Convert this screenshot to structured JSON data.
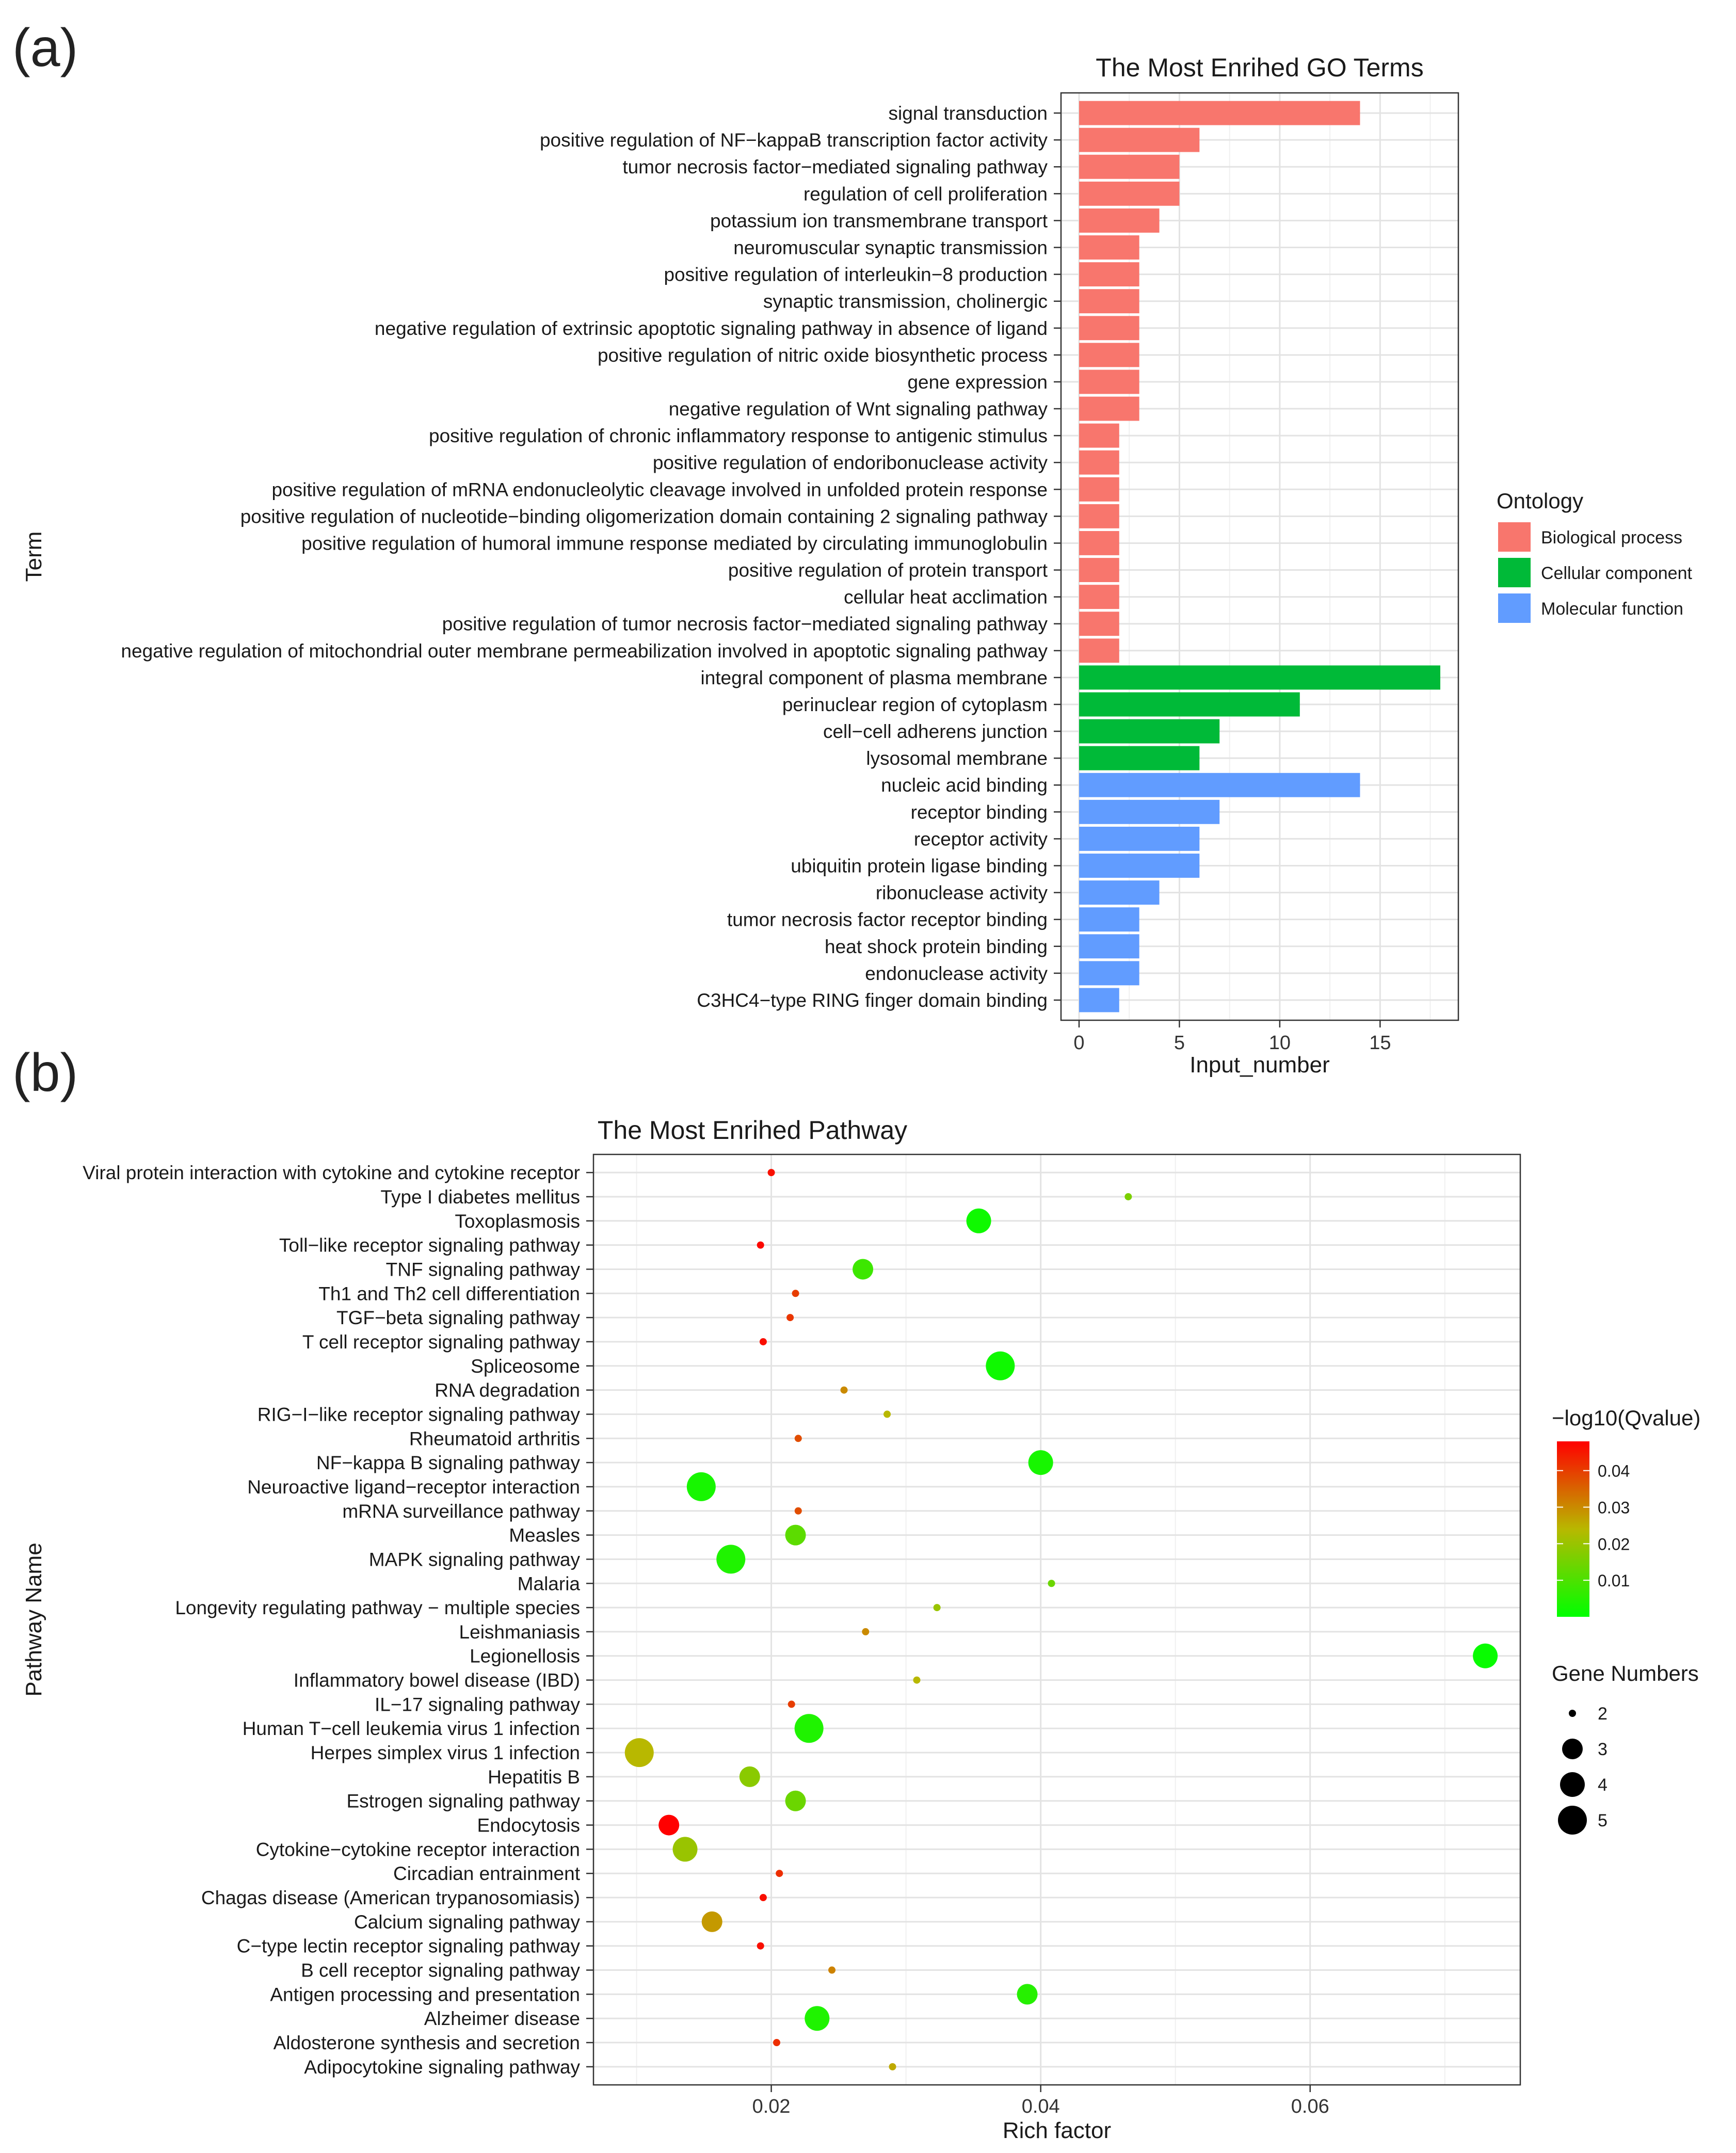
{
  "panel_a_label": "(a)",
  "panel_b_label": "(b)",
  "chart_data": [
    {
      "type": "bar",
      "orientation": "horizontal",
      "title": "The Most Enrihed GO Terms",
      "xlabel": "Input_number",
      "ylabel": "Term",
      "xlim": [
        -0.9,
        18.9
      ],
      "xticks": [
        0,
        5,
        10,
        15
      ],
      "grid": true,
      "legend": {
        "title": "Ontology",
        "placement": "right",
        "entries": [
          {
            "name": "Biological process",
            "color": "#F8766D"
          },
          {
            "name": "Cellular component",
            "color": "#00BA38"
          },
          {
            "name": "Molecular function",
            "color": "#619CFF"
          }
        ]
      },
      "bars": [
        {
          "term": "signal transduction",
          "value": 14,
          "ontology": "Biological process"
        },
        {
          "term": "positive regulation of NF−kappaB transcription factor activity",
          "value": 6,
          "ontology": "Biological process"
        },
        {
          "term": "tumor necrosis factor−mediated signaling pathway",
          "value": 5,
          "ontology": "Biological process"
        },
        {
          "term": "regulation of cell proliferation",
          "value": 5,
          "ontology": "Biological process"
        },
        {
          "term": "potassium ion transmembrane transport",
          "value": 4,
          "ontology": "Biological process"
        },
        {
          "term": "neuromuscular synaptic transmission",
          "value": 3,
          "ontology": "Biological process"
        },
        {
          "term": "positive regulation of interleukin−8 production",
          "value": 3,
          "ontology": "Biological process"
        },
        {
          "term": "synaptic transmission, cholinergic",
          "value": 3,
          "ontology": "Biological process"
        },
        {
          "term": "negative regulation of extrinsic apoptotic signaling pathway in absence of ligand",
          "value": 3,
          "ontology": "Biological process"
        },
        {
          "term": "positive regulation of nitric oxide biosynthetic process",
          "value": 3,
          "ontology": "Biological process"
        },
        {
          "term": "gene expression",
          "value": 3,
          "ontology": "Biological process"
        },
        {
          "term": "negative regulation of Wnt signaling pathway",
          "value": 3,
          "ontology": "Biological process"
        },
        {
          "term": "positive regulation of chronic inflammatory response to antigenic stimulus",
          "value": 2,
          "ontology": "Biological process"
        },
        {
          "term": "positive regulation of endoribonuclease activity",
          "value": 2,
          "ontology": "Biological process"
        },
        {
          "term": "positive regulation of mRNA endonucleolytic cleavage involved in unfolded protein response",
          "value": 2,
          "ontology": "Biological process"
        },
        {
          "term": "positive regulation of nucleotide−binding oligomerization domain containing 2 signaling pathway",
          "value": 2,
          "ontology": "Biological process"
        },
        {
          "term": "positive regulation of humoral immune response mediated by circulating immunoglobulin",
          "value": 2,
          "ontology": "Biological process"
        },
        {
          "term": "positive regulation of protein transport",
          "value": 2,
          "ontology": "Biological process"
        },
        {
          "term": "cellular heat acclimation",
          "value": 2,
          "ontology": "Biological process"
        },
        {
          "term": "positive regulation of tumor necrosis factor−mediated signaling pathway",
          "value": 2,
          "ontology": "Biological process"
        },
        {
          "term": "negative regulation of mitochondrial outer membrane permeabilization involved in apoptotic signaling pathway",
          "value": 2,
          "ontology": "Biological process"
        },
        {
          "term": "integral component of plasma membrane",
          "value": 18,
          "ontology": "Cellular component"
        },
        {
          "term": "perinuclear region of cytoplasm",
          "value": 11,
          "ontology": "Cellular component"
        },
        {
          "term": "cell−cell adherens junction",
          "value": 7,
          "ontology": "Cellular component"
        },
        {
          "term": "lysosomal membrane",
          "value": 6,
          "ontology": "Cellular component"
        },
        {
          "term": "nucleic acid binding",
          "value": 14,
          "ontology": "Molecular function"
        },
        {
          "term": "receptor binding",
          "value": 7,
          "ontology": "Molecular function"
        },
        {
          "term": "receptor activity",
          "value": 6,
          "ontology": "Molecular function"
        },
        {
          "term": "ubiquitin protein ligase binding",
          "value": 6,
          "ontology": "Molecular function"
        },
        {
          "term": "ribonuclease activity",
          "value": 4,
          "ontology": "Molecular function"
        },
        {
          "term": "tumor necrosis factor receptor binding",
          "value": 3,
          "ontology": "Molecular function"
        },
        {
          "term": "heat shock protein binding",
          "value": 3,
          "ontology": "Molecular function"
        },
        {
          "term": "endonuclease activity",
          "value": 3,
          "ontology": "Molecular function"
        },
        {
          "term": "C3HC4−type RING finger domain binding",
          "value": 2,
          "ontology": "Molecular function"
        }
      ]
    },
    {
      "type": "scatter",
      "subtype": "bubble",
      "title": "The Most Enrihed Pathway",
      "xlabel": "Rich factor",
      "ylabel": "Pathway Name",
      "xlim": [
        0.0068,
        0.0756
      ],
      "xticks": [
        0.02,
        0.04,
        0.06
      ],
      "xtick_labels": [
        "0.02",
        "0.04",
        "0.06"
      ],
      "grid": true,
      "color_legend": {
        "title": "−log10(Qvalue)",
        "range": [
          0.0,
          0.048
        ],
        "ticks": [
          0.01,
          0.02,
          0.03,
          0.04
        ],
        "tick_labels": [
          "0.01",
          "0.02",
          "0.03",
          "0.04"
        ],
        "color_low": "#00FF00",
        "color_mid": "#B8B800",
        "color_high": "#FF0000"
      },
      "size_legend": {
        "title": "Gene Numbers",
        "entries": [
          2,
          3,
          4,
          5
        ],
        "entry_labels": [
          "2",
          "3",
          "4",
          "5"
        ]
      },
      "points": [
        {
          "pathway": "Viral protein interaction with cytokine and cytokine receptor",
          "rich_factor": 0.02,
          "genes": 2,
          "qvalue": 0.046
        },
        {
          "pathway": "Type I diabetes mellitus",
          "rich_factor": 0.0465,
          "genes": 2,
          "qvalue": 0.016
        },
        {
          "pathway": "Toxoplasmosis",
          "rich_factor": 0.0354,
          "genes": 4,
          "qvalue": 0.002
        },
        {
          "pathway": "Toll−like receptor signaling pathway",
          "rich_factor": 0.0192,
          "genes": 2,
          "qvalue": 0.047
        },
        {
          "pathway": "TNF signaling pathway",
          "rich_factor": 0.0268,
          "genes": 3,
          "qvalue": 0.008
        },
        {
          "pathway": "Th1 and Th2 cell differentiation",
          "rich_factor": 0.0218,
          "genes": 2,
          "qvalue": 0.04
        },
        {
          "pathway": "TGF−beta signaling pathway",
          "rich_factor": 0.0214,
          "genes": 2,
          "qvalue": 0.041
        },
        {
          "pathway": "T cell receptor signaling pathway",
          "rich_factor": 0.0194,
          "genes": 2,
          "qvalue": 0.046
        },
        {
          "pathway": "Spliceosome",
          "rich_factor": 0.037,
          "genes": 5,
          "qvalue": 0.002
        },
        {
          "pathway": "RNA degradation",
          "rich_factor": 0.0254,
          "genes": 2,
          "qvalue": 0.03
        },
        {
          "pathway": "RIG−I−like receptor signaling pathway",
          "rich_factor": 0.0286,
          "genes": 2,
          "qvalue": 0.024
        },
        {
          "pathway": "Rheumatoid arthritis",
          "rich_factor": 0.022,
          "genes": 2,
          "qvalue": 0.038
        },
        {
          "pathway": "NF−kappa B signaling pathway",
          "rich_factor": 0.04,
          "genes": 4,
          "qvalue": 0.003
        },
        {
          "pathway": "Neuroactive ligand−receptor interaction",
          "rich_factor": 0.0148,
          "genes": 5,
          "qvalue": 0.003
        },
        {
          "pathway": "mRNA surveillance pathway",
          "rich_factor": 0.022,
          "genes": 2,
          "qvalue": 0.038
        },
        {
          "pathway": "Measles",
          "rich_factor": 0.0218,
          "genes": 3,
          "qvalue": 0.012
        },
        {
          "pathway": "MAPK signaling pathway",
          "rich_factor": 0.017,
          "genes": 5,
          "qvalue": 0.004
        },
        {
          "pathway": "Malaria",
          "rich_factor": 0.0408,
          "genes": 2,
          "qvalue": 0.014
        },
        {
          "pathway": "Longevity regulating pathway − multiple species",
          "rich_factor": 0.0323,
          "genes": 2,
          "qvalue": 0.02
        },
        {
          "pathway": "Leishmaniasis",
          "rich_factor": 0.027,
          "genes": 2,
          "qvalue": 0.03
        },
        {
          "pathway": "Legionellosis",
          "rich_factor": 0.073,
          "genes": 4,
          "qvalue": 0.001
        },
        {
          "pathway": "Inflammatory bowel disease (IBD)",
          "rich_factor": 0.0308,
          "genes": 2,
          "qvalue": 0.024
        },
        {
          "pathway": "IL−17 signaling pathway",
          "rich_factor": 0.0215,
          "genes": 2,
          "qvalue": 0.04
        },
        {
          "pathway": "Human T−cell leukemia virus 1 infection",
          "rich_factor": 0.0228,
          "genes": 5,
          "qvalue": 0.004
        },
        {
          "pathway": "Herpes simplex virus 1 infection",
          "rich_factor": 0.0102,
          "genes": 5,
          "qvalue": 0.024
        },
        {
          "pathway": "Hepatitis B",
          "rich_factor": 0.0184,
          "genes": 3,
          "qvalue": 0.018
        },
        {
          "pathway": "Estrogen signaling pathway",
          "rich_factor": 0.0218,
          "genes": 3,
          "qvalue": 0.014
        },
        {
          "pathway": "Endocytosis",
          "rich_factor": 0.0124,
          "genes": 3,
          "qvalue": 0.048
        },
        {
          "pathway": "Cytokine−cytokine receptor interaction",
          "rich_factor": 0.0136,
          "genes": 4,
          "qvalue": 0.02
        },
        {
          "pathway": "Circadian entrainment",
          "rich_factor": 0.0206,
          "genes": 2,
          "qvalue": 0.042
        },
        {
          "pathway": "Chagas disease (American trypanosomiasis)",
          "rich_factor": 0.0194,
          "genes": 2,
          "qvalue": 0.046
        },
        {
          "pathway": "Calcium signaling pathway",
          "rich_factor": 0.0156,
          "genes": 3,
          "qvalue": 0.028
        },
        {
          "pathway": "C−type lectin receptor signaling pathway",
          "rich_factor": 0.0192,
          "genes": 2,
          "qvalue": 0.046
        },
        {
          "pathway": "B cell receptor signaling pathway",
          "rich_factor": 0.0245,
          "genes": 2,
          "qvalue": 0.031
        },
        {
          "pathway": "Antigen processing and presentation",
          "rich_factor": 0.039,
          "genes": 3,
          "qvalue": 0.005
        },
        {
          "pathway": "Alzheimer disease",
          "rich_factor": 0.0234,
          "genes": 4,
          "qvalue": 0.004
        },
        {
          "pathway": "Aldosterone synthesis and secretion",
          "rich_factor": 0.0204,
          "genes": 2,
          "qvalue": 0.042
        },
        {
          "pathway": "Adipocytokine signaling pathway",
          "rich_factor": 0.029,
          "genes": 2,
          "qvalue": 0.026
        }
      ]
    }
  ]
}
